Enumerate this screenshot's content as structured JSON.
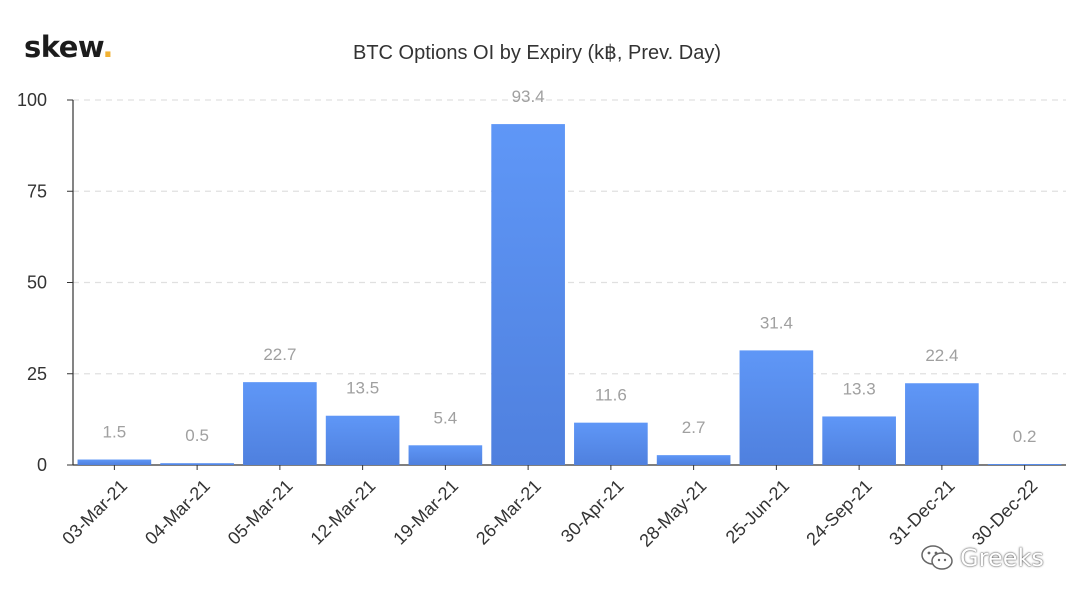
{
  "logo": {
    "text": "skew",
    "dot": "."
  },
  "watermark": {
    "text": "Greeks",
    "icon": "wechat-icon"
  },
  "colors": {
    "bar": "#5b8def",
    "bar_top": "#5f97f7",
    "bar_bottom": "#4f80de",
    "label": "#a0a0a0",
    "axis_text": "#333333",
    "grid": "#e0e0e0"
  },
  "chart_data": {
    "type": "bar",
    "title": "BTC Options OI by Expiry (k฿, Prev. Day)",
    "categories": [
      "03-Mar-21",
      "04-Mar-21",
      "05-Mar-21",
      "12-Mar-21",
      "19-Mar-21",
      "26-Mar-21",
      "30-Apr-21",
      "28-May-21",
      "25-Jun-21",
      "24-Sep-21",
      "31-Dec-21",
      "30-Dec-22"
    ],
    "values": [
      1.5,
      0.5,
      22.7,
      13.5,
      5.4,
      93.4,
      11.6,
      2.7,
      31.4,
      13.3,
      22.4,
      0.2
    ],
    "yticks": [
      0,
      25,
      50,
      75,
      100
    ],
    "ylim": [
      0,
      100
    ],
    "grid": true,
    "data_labels": true,
    "xlabel": "",
    "ylabel": ""
  }
}
